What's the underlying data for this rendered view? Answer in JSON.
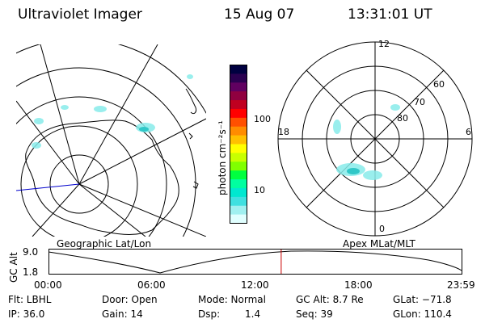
{
  "header": {
    "instrument": "Ultraviolet Imager",
    "date": "15 Aug 07",
    "time": "13:31:01 UT"
  },
  "geo_panel": {
    "caption": "Geographic Lat/Lon"
  },
  "apex_panel": {
    "caption": "Apex MLat/MLT",
    "mlt_labels": {
      "top": "12",
      "left": "18",
      "right": "6",
      "bottom": "0"
    },
    "lat_labels": [
      "60",
      "70",
      "80"
    ]
  },
  "colorbar": {
    "unit_label": "photon cm⁻²s⁻¹",
    "tick_labels": [
      "100",
      "10"
    ],
    "colors": [
      "#000040",
      "#2a0050",
      "#600060",
      "#900040",
      "#c00020",
      "#ff0000",
      "#ff5000",
      "#ff8c00",
      "#ffc000",
      "#ffff00",
      "#c8ff00",
      "#80ff00",
      "#00ff40",
      "#00ffa0",
      "#00e8d0",
      "#40e0e0",
      "#a0f0f0",
      "#e0ffff"
    ]
  },
  "altitude_plot": {
    "ylabel": "GC Alt",
    "y_ticks": [
      "9.0",
      "1.8"
    ],
    "x_ticks": [
      "00:00",
      "06:00",
      "12:00",
      "18:00",
      "23:59"
    ],
    "current_time_marker_hours": 13.52,
    "marker_color": "#cc0000"
  },
  "status": {
    "row1": [
      {
        "label": "Flt: LBHL"
      },
      {
        "label": "Door: Open"
      },
      {
        "label": "Mode: Normal"
      },
      {
        "label": "GC Alt: 8.7 Re"
      },
      {
        "label": "GLat: −71.8"
      }
    ],
    "row2": [
      {
        "label": "IP: 36.0"
      },
      {
        "label": "Gain: 14"
      },
      {
        "label": "Dsp:"
      },
      {
        "label": "1.4"
      },
      {
        "label": "Seq: 39"
      },
      {
        "label": "GLon: 110.4"
      }
    ]
  }
}
